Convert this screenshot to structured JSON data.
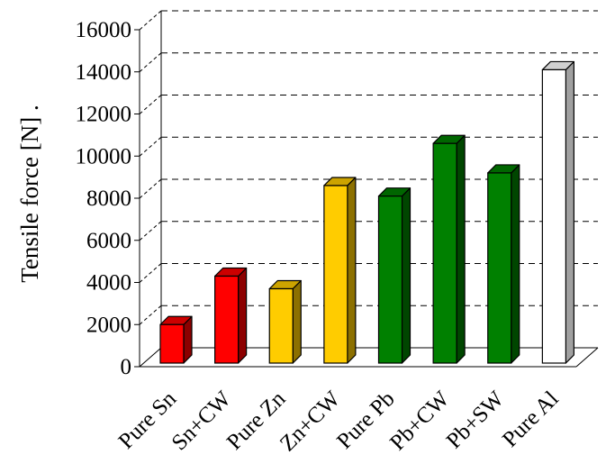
{
  "chart_data": {
    "type": "bar",
    "style": "3d",
    "title": "",
    "xlabel": "",
    "ylabel": "Tensile force [N] .",
    "ylim": [
      0,
      16000
    ],
    "yticks": [
      0,
      2000,
      4000,
      6000,
      8000,
      10000,
      12000,
      14000,
      16000
    ],
    "grid": "dashed horizontal",
    "categories": [
      "Pure Sn",
      "Sn+CW",
      "Pure Zn",
      "Zn+CW",
      "Pure Pb",
      "Pb+CW",
      "Pb+SW",
      "Pure Al"
    ],
    "values": [
      2000,
      4300,
      3700,
      8600,
      8100,
      10600,
      9200,
      14100
    ],
    "colors": [
      "#ff0000",
      "#ff0000",
      "#ffcc00",
      "#ffcc00",
      "#008000",
      "#008000",
      "#008000",
      "#ffffff"
    ]
  }
}
